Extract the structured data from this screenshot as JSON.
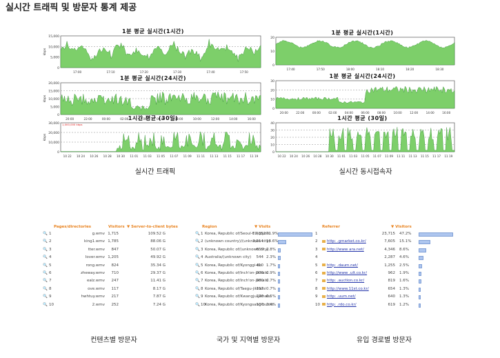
{
  "page": {
    "title": "실시간 트래픽 및 방문자 통계 제공"
  },
  "captions": {
    "traffic": "실시간 트래픽",
    "concurrent": "실시간 동시접속자",
    "content": "컨텐츠별 방문자",
    "country": "국가 및 지역별 방문자",
    "referrer": "유입 경로별 방문자"
  },
  "colors": {
    "fill": "#7dcf6a",
    "line": "#2e8a2e",
    "accent": "#e8821e",
    "bar": "#aec6ef"
  },
  "charts": [
    {
      "id": "t1",
      "title": "1분 평균 실시간(1시간)",
      "ylabel": "kbps",
      "yticks": [
        "15,000",
        "10,000",
        "5,000",
        "0"
      ],
      "ymax": 15000,
      "xticks": [
        "17:00",
        "17:10",
        "17:20",
        "17:30",
        "17:40",
        "17:50"
      ]
    },
    {
      "id": "t2",
      "title": "1분 평균 실시간(24시간)",
      "ylabel": "kbps",
      "yticks": [
        "20,000",
        "15,000",
        "10,000",
        "5,000",
        "0"
      ],
      "ymax": 20000,
      "xticks": [
        "20:00",
        "22:00",
        "00:00",
        "02:00",
        "04:00",
        "06:00",
        "08:00",
        "10:00",
        "12:00",
        "14:00",
        "16:00"
      ]
    },
    {
      "id": "t3",
      "title": "1시간 평균 (30일)",
      "ylabel": "kbps",
      "yticks": [
        "30,000",
        "20,000",
        "10,000",
        "0"
      ],
      "ymax": 30000,
      "xticks": [
        "10 22",
        "10 24",
        "10 26",
        "10 28",
        "10 30",
        "11 01",
        "11 03",
        "11 05",
        "11 07",
        "11 09",
        "11 11",
        "11 13",
        "11 15",
        "11 17",
        "11 19"
      ],
      "annotation": "1,000,000 kbps"
    },
    {
      "id": "c1",
      "title": "1분 평균 실시간(1시간)",
      "ylabel": "",
      "yticks": [
        "20",
        "10",
        "0"
      ],
      "ymax": 30,
      "xticks": [
        "17:40",
        "17:50",
        "18:00",
        "18:10",
        "18:20",
        "18:30"
      ]
    },
    {
      "id": "c2",
      "title": "1분 평균 실시간(24시간)",
      "ylabel": "",
      "yticks": [
        "30",
        "20",
        "10",
        "0"
      ],
      "ymax": 40,
      "xticks": [
        "20:00",
        "22:00",
        "00:00",
        "02:00",
        "04:00",
        "06:00",
        "08:00",
        "10:00",
        "12:00",
        "14:00",
        "16:00"
      ]
    },
    {
      "id": "c3",
      "title": "1시간 평균 (30일)",
      "ylabel": "",
      "yticks": [
        "40",
        "30",
        "20",
        "10",
        "0"
      ],
      "ymax": 45,
      "xticks": [
        "10 22",
        "10 24",
        "10 26",
        "10 28",
        "10 30",
        "11 01",
        "11 03",
        "11 05",
        "11 07",
        "11 09",
        "11 11",
        "11 13",
        "11 15",
        "11 17",
        "11 19"
      ]
    }
  ],
  "content_table": {
    "headers": [
      "Pages/directories",
      "Visitors",
      "Server-to-client bytes"
    ],
    "rows": [
      {
        "n": "1",
        "page": "g.wmv",
        "v": "1,715",
        "b": "109.52 G"
      },
      {
        "n": "2",
        "page": "king1.wmv",
        "v": "1,785",
        "b": "88.06 G"
      },
      {
        "n": "3",
        "page": "tter.wmv",
        "v": "847",
        "b": "50.07 G"
      },
      {
        "n": "4",
        "page": "Iover.wmv",
        "v": "1,205",
        "b": "49.92 G"
      },
      {
        "n": "5",
        "page": "rong.wmv",
        "v": "824",
        "b": "35.34 G"
      },
      {
        "n": "6",
        "page": "zheway.wmv",
        "v": "710",
        "b": "29.37 G"
      },
      {
        "n": "7",
        "page": "ealz.wmv",
        "v": "247",
        "b": "11.41 G"
      },
      {
        "n": "8",
        "page": "ove.wmv",
        "v": "117",
        "b": "8.17 G"
      },
      {
        "n": "9",
        "page": "hwhtuy.wmv",
        "v": "217",
        "b": "7.87 G"
      },
      {
        "n": "10",
        "page": "2.wmv",
        "v": "252",
        "b": "7.24 G"
      }
    ]
  },
  "country_table": {
    "headers": [
      "Region",
      "Visits"
    ],
    "rows": [
      {
        "n": "1",
        "r": "Korea, Republic of/Seoul-t'ukpyolsi",
        "v": "17,352",
        "p": "71.9%",
        "f": 0.72
      },
      {
        "n": "2",
        "r": "(unknown country)/(unknown city)",
        "v": "3,514",
        "p": "14.6%",
        "f": 0.146
      },
      {
        "n": "3",
        "r": "Korea, Republic of/(unknown city)",
        "v": "659",
        "p": "2.8%",
        "f": 0.028
      },
      {
        "n": "4",
        "r": "Australia/(unknown city)",
        "v": "544",
        "p": "2.3%",
        "f": 0.023
      },
      {
        "n": "5",
        "r": "Korea, Republic of/Kyonggi-do",
        "v": "410",
        "p": "1.7%",
        "f": 0.017
      },
      {
        "n": "6",
        "r": "Korea, Republic of/Inch'on-jikhalsi",
        "v": "208",
        "p": "0.9%",
        "f": 0.009
      },
      {
        "n": "7",
        "r": "Korea, Republic of/Inch'on-jikhalsi",
        "v": "160",
        "p": "0.7%",
        "f": 0.007
      },
      {
        "n": "8",
        "r": "Korea, Republic of/Taegu-jikhalsi",
        "v": "157",
        "p": "0.7%",
        "f": 0.007
      },
      {
        "n": "9",
        "r": "Korea, Republic of/Kwangju-jikhalsi",
        "v": "126",
        "p": "0.5%",
        "f": 0.005
      },
      {
        "n": "10",
        "r": "Korea, Republic of/Kyongsang-bukto",
        "v": "106",
        "p": "0.4%",
        "f": 0.004
      }
    ]
  },
  "referrer_table": {
    "headers": [
      "Referrer",
      "Visitors"
    ],
    "rows": [
      {
        "n": "1",
        "r": "",
        "v": "23,715",
        "p": "47.2%",
        "f": 0.472,
        "link": false
      },
      {
        "n": "2",
        "r": "http:          .gmarket.co.kr/",
        "v": "7,605",
        "p": "15.1%",
        "f": 0.151,
        "link": true
      },
      {
        "n": "3",
        "r": "http://www              ara.net/",
        "v": "4,346",
        "p": "8.6%",
        "f": 0.086,
        "link": true
      },
      {
        "n": "4",
        "r": "",
        "v": "2,287",
        "p": "4.6%",
        "f": 0.046,
        "link": false
      },
      {
        "n": "5",
        "r": "http:           .daum.net/",
        "v": "1,255",
        "p": "2.5%",
        "f": 0.025,
        "link": true
      },
      {
        "n": "6",
        "r": "http://www           .ult.co.kr/",
        "v": "962",
        "p": "1.9%",
        "f": 0.019,
        "link": true
      },
      {
        "n": "7",
        "r": "http:            .auction.co.kr/",
        "v": "819",
        "p": "1.6%",
        "f": 0.016,
        "link": true
      },
      {
        "n": "8",
        "r": "http://www.11st.co.kr/",
        "v": "654",
        "p": "1.3%",
        "f": 0.013,
        "link": true
      },
      {
        "n": "9",
        "r": "http:          .uum.net/",
        "v": "640",
        "p": "1.3%",
        "f": 0.013,
        "link": true
      },
      {
        "n": "10",
        "r": "http:           .rdo.co.kr/",
        "v": "619",
        "p": "1.2%",
        "f": 0.012,
        "link": true
      }
    ]
  }
}
